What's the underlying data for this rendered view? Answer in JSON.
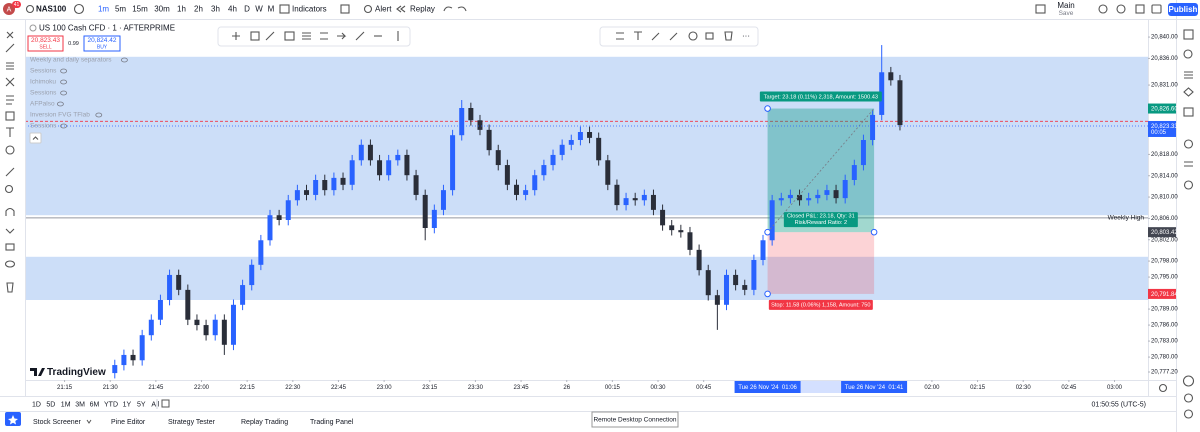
{
  "header": {
    "notifications": "41",
    "symbol": "NAS100",
    "intervals": [
      "1m",
      "5m",
      "15m",
      "30m",
      "1h",
      "2h",
      "3h",
      "4h",
      "D",
      "W",
      "M"
    ],
    "active_interval": "1m",
    "indicators": "Indicators",
    "alert": "Alert",
    "replay": "Replay",
    "layout_name": "Main",
    "layout_status": "Save",
    "publish": "Publish"
  },
  "legend": {
    "title": "US 100 Cash CFD · 1 · AFTERPRIME",
    "sell_price": "20,823.43",
    "sell": "SELL",
    "spread": "0.99",
    "buy_price": "20,824.42",
    "buy": "BUY",
    "indicators": [
      "Weekly and daily separators",
      "Sessions",
      "Ichimoku",
      "Sessions",
      "AFPalso",
      "Inversion FVG TFlab",
      "Sessions"
    ]
  },
  "chart": {
    "logo": "TradingView",
    "up_color": "#2962ff",
    "down_color": "#2a2e39",
    "xlim": [
      "21:02",
      "03:11"
    ],
    "ylim": [
      20775.7,
      20843.2
    ],
    "candles": {
      "time": [
        "21:30",
        "21:33",
        "21:36",
        "21:39",
        "21:42",
        "21:45",
        "21:48",
        "21:51",
        "21:54",
        "21:57",
        "22:00",
        "22:03",
        "22:06",
        "22:09",
        "22:12",
        "22:15",
        "22:18",
        "22:21",
        "22:24",
        "22:27",
        "22:30",
        "22:33",
        "22:36",
        "22:39",
        "22:42",
        "22:45",
        "22:48",
        "22:51",
        "22:54",
        "22:57",
        "23:00",
        "23:03",
        "23:06",
        "23:09",
        "23:12",
        "23:15",
        "23:18",
        "23:21",
        "23:24",
        "23:27",
        "23:30",
        "23:33",
        "23:36",
        "23:39",
        "23:42",
        "23:45",
        "23:48",
        "23:51",
        "23:54",
        "23:57",
        "00:00",
        "00:03",
        "00:06",
        "00:09",
        "00:12",
        "00:15",
        "00:18",
        "00:21",
        "00:24",
        "00:27",
        "00:30",
        "00:33",
        "00:36",
        "00:39",
        "00:42",
        "00:45",
        "00:48",
        "00:51",
        "00:54",
        "00:57",
        "01:00",
        "01:03",
        "01:06",
        "01:09",
        "01:12",
        "01:15",
        "01:18",
        "01:21",
        "01:24",
        "01:27",
        "01:30",
        "01:33",
        "01:36",
        "01:39",
        "01:42",
        "01:45",
        "01:48"
      ],
      "open": [
        20777.0,
        20778.5,
        20780.4,
        20779.4,
        20784.1,
        20787.0,
        20790.7,
        20795.4,
        20792.6,
        20787.0,
        20786.0,
        20784.1,
        20787.0,
        20782.3,
        20789.8,
        20793.5,
        20797.3,
        20801.9,
        20806.6,
        20805.7,
        20809.4,
        20811.3,
        20810.4,
        20813.2,
        20811.3,
        20813.6,
        20812.3,
        20816.9,
        20819.8,
        20816.9,
        20814.1,
        20816.9,
        20817.9,
        20814.1,
        20810.4,
        20804.2,
        20807.6,
        20811.3,
        20821.6,
        20826.7,
        20824.4,
        20822.6,
        20818.8,
        20816.0,
        20812.3,
        20810.4,
        20811.3,
        20814.1,
        20816.0,
        20817.9,
        20819.8,
        20820.7,
        20822.2,
        20821.1,
        20816.9,
        20812.3,
        20808.5,
        20809.8,
        20809.4,
        20810.4,
        20807.6,
        20804.7,
        20803.8,
        20803.4,
        20800.1,
        20796.3,
        20791.6,
        20789.8,
        20795.4,
        20793.5,
        20792.6,
        20798.2,
        20801.9,
        20809.4,
        20809.8,
        20810.4,
        20809.4,
        20809.8,
        20810.4,
        20811.3,
        20809.8,
        20813.2,
        20816.0,
        20820.7,
        20825.4,
        20833.4,
        20831.9
      ],
      "high": [
        20779.5,
        20781.4,
        20781.4,
        20785.1,
        20788.0,
        20791.7,
        20796.4,
        20796.4,
        20793.6,
        20788.0,
        20787.0,
        20788.0,
        20788.0,
        20790.8,
        20794.5,
        20798.3,
        20802.9,
        20807.6,
        20807.6,
        20810.4,
        20812.3,
        20812.3,
        20814.2,
        20814.2,
        20814.6,
        20814.6,
        20817.9,
        20820.8,
        20820.8,
        20817.9,
        20817.9,
        20818.9,
        20818.9,
        20815.1,
        20811.4,
        20808.6,
        20812.3,
        20822.6,
        20828.2,
        20827.7,
        20825.4,
        20823.6,
        20819.8,
        20817.0,
        20813.3,
        20812.3,
        20815.1,
        20817.0,
        20818.9,
        20820.8,
        20821.7,
        20823.2,
        20823.2,
        20822.1,
        20817.9,
        20813.3,
        20810.8,
        20810.8,
        20811.4,
        20811.4,
        20808.6,
        20805.7,
        20804.8,
        20804.4,
        20801.1,
        20797.3,
        20792.6,
        20796.4,
        20796.4,
        20794.5,
        20799.2,
        20802.9,
        20810.4,
        20810.8,
        20811.4,
        20811.4,
        20810.8,
        20811.4,
        20812.3,
        20812.3,
        20814.2,
        20817.0,
        20821.7,
        20826.4,
        20838.5,
        20834.4,
        20832.9
      ],
      "low": [
        20776.0,
        20777.5,
        20778.4,
        20778.4,
        20783.1,
        20786.0,
        20789.7,
        20791.6,
        20786.0,
        20785.0,
        20783.1,
        20783.1,
        20780.4,
        20781.3,
        20788.8,
        20792.5,
        20796.3,
        20800.9,
        20804.7,
        20804.7,
        20808.4,
        20809.4,
        20809.4,
        20810.3,
        20810.3,
        20811.3,
        20811.3,
        20815.9,
        20815.9,
        20813.1,
        20813.1,
        20815.9,
        20813.1,
        20809.4,
        20801.9,
        20803.2,
        20806.6,
        20810.3,
        20820.6,
        20823.4,
        20821.6,
        20817.8,
        20815.0,
        20811.3,
        20809.4,
        20809.4,
        20810.3,
        20813.1,
        20815.0,
        20816.9,
        20818.8,
        20819.7,
        20820.1,
        20815.9,
        20811.3,
        20807.5,
        20807.5,
        20808.4,
        20808.4,
        20806.6,
        20803.7,
        20802.8,
        20802.4,
        20799.1,
        20795.3,
        20790.6,
        20785.1,
        20788.8,
        20792.5,
        20791.6,
        20791.6,
        20797.2,
        20800.9,
        20808.4,
        20808.8,
        20808.4,
        20808.4,
        20808.8,
        20809.4,
        20808.8,
        20808.8,
        20812.2,
        20815.0,
        20819.7,
        20824.4,
        20830.9,
        20822.5
      ],
      "close": [
        20778.5,
        20780.4,
        20779.4,
        20784.1,
        20787.0,
        20790.7,
        20795.4,
        20792.6,
        20787.0,
        20786.0,
        20784.1,
        20787.0,
        20782.3,
        20789.8,
        20793.5,
        20797.3,
        20801.9,
        20806.6,
        20805.7,
        20809.4,
        20811.3,
        20810.4,
        20813.2,
        20811.3,
        20813.6,
        20812.3,
        20816.9,
        20819.8,
        20816.9,
        20814.1,
        20816.9,
        20817.9,
        20814.1,
        20810.4,
        20804.2,
        20807.6,
        20811.3,
        20821.6,
        20826.7,
        20824.4,
        20822.6,
        20818.8,
        20816.0,
        20812.3,
        20810.4,
        20811.3,
        20814.1,
        20816.0,
        20817.9,
        20819.8,
        20820.7,
        20822.2,
        20821.1,
        20816.9,
        20812.3,
        20808.5,
        20809.8,
        20809.4,
        20810.4,
        20807.6,
        20804.7,
        20803.8,
        20803.4,
        20800.1,
        20796.3,
        20791.6,
        20789.8,
        20795.4,
        20793.5,
        20792.6,
        20798.2,
        20801.9,
        20809.4,
        20809.8,
        20810.4,
        20809.4,
        20809.8,
        20810.4,
        20811.3,
        20809.8,
        20813.2,
        20816.0,
        20820.7,
        20825.4,
        20833.4,
        20831.9,
        20823.5
      ]
    },
    "price_ticks": [
      {
        "value": 20840,
        "label": "20,840.00"
      },
      {
        "value": 20836,
        "label": "20,836.00"
      },
      {
        "value": 20831,
        "label": "20,831.00"
      },
      {
        "value": 20818,
        "label": "20,818.00"
      },
      {
        "value": 20814,
        "label": "20,814.00"
      },
      {
        "value": 20810,
        "label": "20,810.00"
      },
      {
        "value": 20806,
        "label": "20,806.00"
      },
      {
        "value": 20802,
        "label": "20,802.00"
      },
      {
        "value": 20798,
        "label": "20,798.00"
      },
      {
        "value": 20795,
        "label": "20,795.00"
      },
      {
        "value": 20789,
        "label": "20,789.00"
      },
      {
        "value": 20786,
        "label": "20,786.00"
      },
      {
        "value": 20783,
        "label": "20,783.00"
      },
      {
        "value": 20780,
        "label": "20,780.00"
      },
      {
        "value": 20777.2,
        "label": "20,777.20"
      }
    ],
    "price_badges": [
      {
        "value": 20826.6,
        "label": "20,826.60",
        "color": "#089981"
      },
      {
        "value": 20823.33,
        "label": "20,823.33",
        "color": "#2962ff",
        "countdown": "00:05"
      },
      {
        "value": 20803.42,
        "label": "20,803.42",
        "color": "#434651"
      },
      {
        "value": 20791.84,
        "label": "20,791.84",
        "color": "#f23645"
      }
    ],
    "time_ticks": [
      {
        "value": "21:15",
        "label": "21:15"
      },
      {
        "value": "21:30",
        "label": "21:30"
      },
      {
        "value": "21:45",
        "label": "21:45"
      },
      {
        "value": "22:00",
        "label": "22:00"
      },
      {
        "value": "22:15",
        "label": "22:15"
      },
      {
        "value": "22:30",
        "label": "22:30"
      },
      {
        "value": "22:45",
        "label": "22:45"
      },
      {
        "value": "23:00",
        "label": "23:00"
      },
      {
        "value": "23:15",
        "label": "23:15"
      },
      {
        "value": "23:30",
        "label": "23:30"
      },
      {
        "value": "23:45",
        "label": "23:45"
      },
      {
        "value": "00:00",
        "label": "26"
      },
      {
        "value": "00:15",
        "label": "00:15"
      },
      {
        "value": "00:30",
        "label": "00:30"
      },
      {
        "value": "00:45",
        "label": "00:45"
      },
      {
        "value": "02:00",
        "label": "02:00"
      },
      {
        "value": "02:15",
        "label": "02:15"
      },
      {
        "value": "02:30",
        "label": "02:30"
      },
      {
        "value": "02:45",
        "label": "02:45"
      },
      {
        "value": "03:00",
        "label": "03:00"
      }
    ],
    "time_cursors": [
      {
        "time": "01:06",
        "label": "Tue 26 Nov '24  01:06"
      },
      {
        "time": "01:41",
        "label": "Tue 26 Nov '24  01:41"
      }
    ],
    "zones": [
      {
        "from": 20806.6,
        "to": 20836.3
      },
      {
        "from": 20790.7,
        "to": 20798.8
      }
    ],
    "zone_color": "#c9dcf8",
    "weekly_high": {
      "price": 20806.1,
      "label": "Weekly High"
    },
    "dashed_line": {
      "price": 20824.2,
      "color": "#f23645"
    },
    "position": {
      "entry": 20803.42,
      "target": 20826.6,
      "stop": 20791.84,
      "start": "01:06",
      "end": "01:41",
      "target_label": "Target: 23.18 (0.11%) 2,318, Amount: 1500.43",
      "closed_label": "Closed P&L: 23.18, Qty: 31",
      "ratio_label": "Risk/Reward Ratio: 2",
      "stop_label": "Stop: 11.58 (0.06%) 1,158, Amount: 750"
    }
  },
  "footer": {
    "ranges": [
      "1D",
      "5D",
      "1M",
      "3M",
      "6M",
      "YTD",
      "1Y",
      "5Y",
      "All"
    ],
    "clock": "01:50:55 (UTC-5)",
    "tabs": [
      "Stock Screener",
      "Pine Editor",
      "Strategy Tester",
      "Replay Trading",
      "Trading Panel"
    ],
    "tooltip": "Remote Desktop Connection"
  }
}
